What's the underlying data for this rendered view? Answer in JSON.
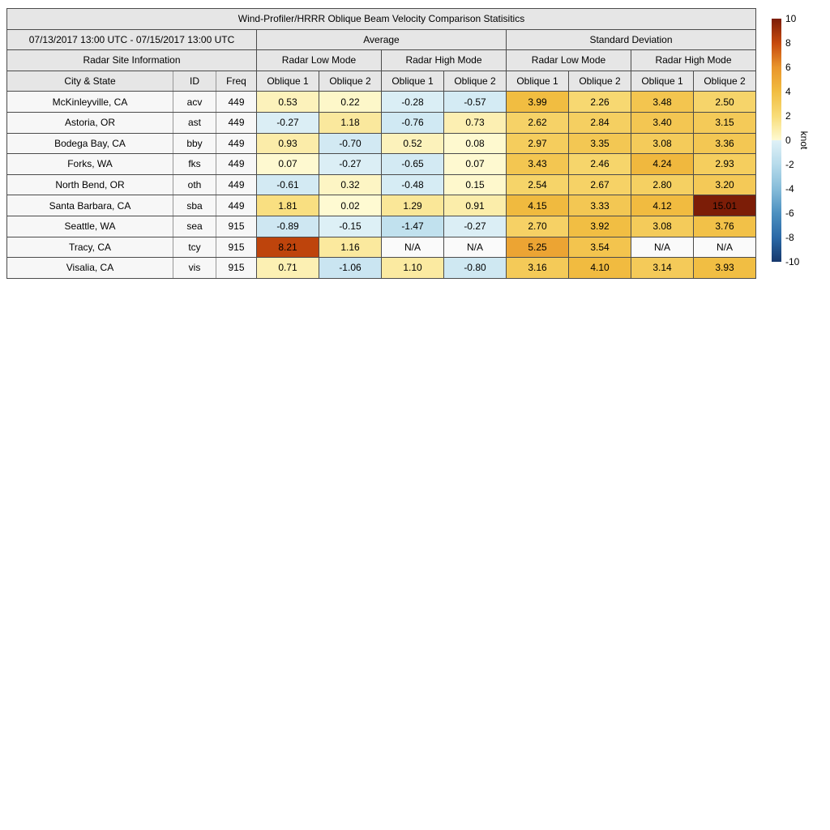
{
  "figure": {
    "title": "Wind-Profiler/HRRR Oblique Beam Velocity Comparison Statisitics",
    "period": "07/13/2017 13:00 UTC - 07/15/2017 13:00 UTC",
    "group_headers": {
      "site_info": "Radar Site Information",
      "average": "Average",
      "std_dev": "Standard Deviation",
      "low_mode": "Radar Low Mode",
      "high_mode": "Radar High Mode"
    },
    "columns": {
      "city": "City & State",
      "id": "ID",
      "freq": "Freq",
      "oblique1": "Oblique 1",
      "oblique2": "Oblique 2"
    },
    "na_text": "N/A"
  },
  "chart_data": {
    "type": "table",
    "title": "Wind-Profiler/HRRR Oblique Beam Velocity Comparison Statisitics",
    "time_range": "07/13/2017 13:00 UTC - 07/15/2017 13:00 UTC",
    "unit": "knot",
    "value_columns": [
      {
        "group": "Average",
        "mode": "Radar Low Mode",
        "beam": "Oblique 1"
      },
      {
        "group": "Average",
        "mode": "Radar Low Mode",
        "beam": "Oblique 2"
      },
      {
        "group": "Average",
        "mode": "Radar High Mode",
        "beam": "Oblique 1"
      },
      {
        "group": "Average",
        "mode": "Radar High Mode",
        "beam": "Oblique 2"
      },
      {
        "group": "Standard Deviation",
        "mode": "Radar Low Mode",
        "beam": "Oblique 1"
      },
      {
        "group": "Standard Deviation",
        "mode": "Radar Low Mode",
        "beam": "Oblique 2"
      },
      {
        "group": "Standard Deviation",
        "mode": "Radar High Mode",
        "beam": "Oblique 1"
      },
      {
        "group": "Standard Deviation",
        "mode": "Radar High Mode",
        "beam": "Oblique 2"
      }
    ],
    "rows": [
      {
        "city": "McKinleyville, CA",
        "id": "acv",
        "freq": 449,
        "values": [
          0.53,
          0.22,
          -0.28,
          -0.57,
          3.99,
          2.26,
          3.48,
          2.5
        ]
      },
      {
        "city": "Astoria, OR",
        "id": "ast",
        "freq": 449,
        "values": [
          -0.27,
          1.18,
          -0.76,
          0.73,
          2.62,
          2.84,
          3.4,
          3.15
        ]
      },
      {
        "city": "Bodega Bay, CA",
        "id": "bby",
        "freq": 449,
        "values": [
          0.93,
          -0.7,
          0.52,
          0.08,
          2.97,
          3.35,
          3.08,
          3.36
        ]
      },
      {
        "city": "Forks, WA",
        "id": "fks",
        "freq": 449,
        "values": [
          0.07,
          -0.27,
          -0.65,
          0.07,
          3.43,
          2.46,
          4.24,
          2.93
        ]
      },
      {
        "city": "North Bend, OR",
        "id": "oth",
        "freq": 449,
        "values": [
          -0.61,
          0.32,
          -0.48,
          0.15,
          2.54,
          2.67,
          2.8,
          3.2
        ]
      },
      {
        "city": "Santa Barbara, CA",
        "id": "sba",
        "freq": 449,
        "values": [
          1.81,
          0.02,
          1.29,
          0.91,
          4.15,
          3.33,
          4.12,
          15.01
        ]
      },
      {
        "city": "Seattle, WA",
        "id": "sea",
        "freq": 915,
        "values": [
          -0.89,
          -0.15,
          -1.47,
          -0.27,
          2.7,
          3.92,
          3.08,
          3.76
        ]
      },
      {
        "city": "Tracy, CA",
        "id": "tcy",
        "freq": 915,
        "values": [
          8.21,
          1.16,
          "N/A",
          "N/A",
          5.25,
          3.54,
          "N/A",
          "N/A"
        ]
      },
      {
        "city": "Visalia, CA",
        "id": "vis",
        "freq": 915,
        "values": [
          0.71,
          -1.06,
          1.1,
          -0.8,
          3.16,
          4.1,
          3.14,
          3.93
        ]
      }
    ],
    "colorbar": {
      "label": "knot",
      "min": -10,
      "max": 10,
      "ticks": [
        10,
        8,
        6,
        4,
        2,
        0,
        -2,
        -4,
        -6,
        -8,
        -10
      ],
      "stops": [
        [
          -10,
          "#16386C"
        ],
        [
          -8,
          "#2A69A7"
        ],
        [
          -6,
          "#4C90C0"
        ],
        [
          -4,
          "#86BCD9"
        ],
        [
          -2,
          "#B6DBEB"
        ],
        [
          -0.02,
          "#E0F1F7"
        ],
        [
          0.02,
          "#FEFAD2"
        ],
        [
          2,
          "#F8DC78"
        ],
        [
          4,
          "#F1BD41"
        ],
        [
          6,
          "#E9952B"
        ],
        [
          8,
          "#C6490D"
        ],
        [
          10,
          "#7C1D07"
        ]
      ]
    }
  }
}
